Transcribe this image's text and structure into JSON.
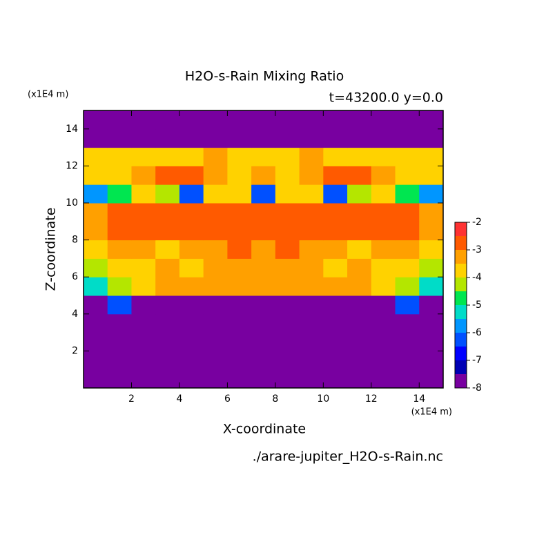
{
  "chart_data": {
    "type": "contour",
    "title": "H2O-s-Rain Mixing Ratio",
    "subtitle": "t=43200.0 y=0.0",
    "x_label": "X-coordinate",
    "y_label": "Z-coordinate",
    "x_unit": "(x1E4 m)",
    "y_unit": "(x1E4 m)",
    "footer": "./arare-jupiter_H2O-s-Rain.nc",
    "xlim": [
      0,
      15
    ],
    "ylim": [
      0,
      15
    ],
    "xticks": [
      2,
      4,
      6,
      8,
      10,
      12,
      14
    ],
    "yticks": [
      2,
      4,
      6,
      8,
      10,
      12,
      14
    ],
    "x": [
      0.5,
      1.5,
      2.5,
      3.5,
      4.5,
      5.5,
      6.5,
      7.5,
      8.5,
      9.5,
      10.5,
      11.5,
      12.5,
      13.5,
      14.5
    ],
    "z": [
      0.5,
      1.5,
      2.5,
      3.5,
      4.5,
      5.5,
      6.5,
      7.5,
      8.5,
      9.5,
      10.5,
      11.5,
      12.5,
      13.5,
      14.5
    ],
    "values": [
      [
        -8,
        -8,
        -8,
        -8,
        -8,
        -8,
        -8,
        -8,
        -8,
        -8,
        -8,
        -8,
        -8,
        -8,
        -8
      ],
      [
        -8,
        -8,
        -8,
        -8,
        -8,
        -8,
        -8,
        -8,
        -8,
        -8,
        -8,
        -8,
        -8,
        -8,
        -8
      ],
      [
        -8,
        -8,
        -8,
        -8,
        -8,
        -8,
        -8,
        -8,
        -8,
        -8,
        -8,
        -8,
        -8,
        -8,
        -8
      ],
      [
        -8,
        -8,
        -8,
        -8,
        -8,
        -8,
        -8,
        -8,
        -8,
        -8,
        -8,
        -8,
        -8,
        -8,
        -8
      ],
      [
        -8,
        -6.2,
        -8,
        -8,
        -8,
        -8,
        -8,
        -8,
        -8,
        -8,
        -8,
        -8,
        -8,
        -6.2,
        -8
      ],
      [
        -5.2,
        -4.2,
        -3.7,
        -3.2,
        -3.2,
        -3.2,
        -3.2,
        -3.2,
        -3.2,
        -3.2,
        -3.2,
        -3.2,
        -3.7,
        -4.2,
        -5.2
      ],
      [
        -4.2,
        -3.7,
        -3.7,
        -3.2,
        -3.7,
        -3.2,
        -3.2,
        -3.2,
        -3.2,
        -3.2,
        -3.7,
        -3.2,
        -3.7,
        -3.7,
        -4.2
      ],
      [
        -3.7,
        -3.2,
        -3.2,
        -3.7,
        -3.2,
        -3.2,
        -2.7,
        -3.2,
        -2.7,
        -3.2,
        -3.2,
        -3.7,
        -3.2,
        -3.2,
        -3.7
      ],
      [
        -3.2,
        -2.7,
        -2.7,
        -2.7,
        -2.7,
        -2.7,
        -2.7,
        -2.7,
        -2.7,
        -2.7,
        -2.7,
        -2.7,
        -2.7,
        -2.7,
        -3.2
      ],
      [
        -3.2,
        -2.7,
        -2.7,
        -2.7,
        -2.7,
        -2.7,
        -2.7,
        -2.7,
        -2.7,
        -2.7,
        -2.7,
        -2.7,
        -2.7,
        -2.7,
        -3.2
      ],
      [
        -5.7,
        -4.7,
        -3.7,
        -4.2,
        -6.2,
        -3.7,
        -3.7,
        -6.2,
        -3.7,
        -3.7,
        -6.2,
        -4.2,
        -3.7,
        -4.7,
        -5.7
      ],
      [
        -3.7,
        -3.7,
        -3.2,
        -2.7,
        -2.7,
        -3.2,
        -3.7,
        -3.2,
        -3.7,
        -3.2,
        -2.7,
        -2.7,
        -3.2,
        -3.7,
        -3.7
      ],
      [
        -3.7,
        -3.7,
        -3.7,
        -3.7,
        -3.7,
        -3.2,
        -3.7,
        -3.7,
        -3.7,
        -3.2,
        -3.7,
        -3.7,
        -3.7,
        -3.7,
        -3.7
      ],
      [
        -8,
        -8,
        -8,
        -8,
        -8,
        -8,
        -8,
        -8,
        -8,
        -8,
        -8,
        -8,
        -8,
        -8,
        -8
      ],
      [
        -8,
        -8,
        -8,
        -8,
        -8,
        -8,
        -8,
        -8,
        -8,
        -8,
        -8,
        -8,
        -8,
        -8,
        -8
      ]
    ],
    "levels": [
      -8,
      -7.5,
      -7,
      -6.5,
      -6,
      -5.5,
      -5,
      -4.5,
      -4,
      -3.5,
      -3,
      -2.5,
      -2
    ],
    "colors": [
      "#7800a0",
      "#0000b4",
      "#0000ff",
      "#0050ff",
      "#0096ff",
      "#00dcc8",
      "#00e650",
      "#b4e600",
      "#ffd200",
      "#ffa000",
      "#ff5a00",
      "#ff3232",
      "#ffaaaa"
    ],
    "colorbar_ticks": [
      -8,
      -7,
      -6,
      -5,
      -4,
      -3,
      -2
    ]
  }
}
